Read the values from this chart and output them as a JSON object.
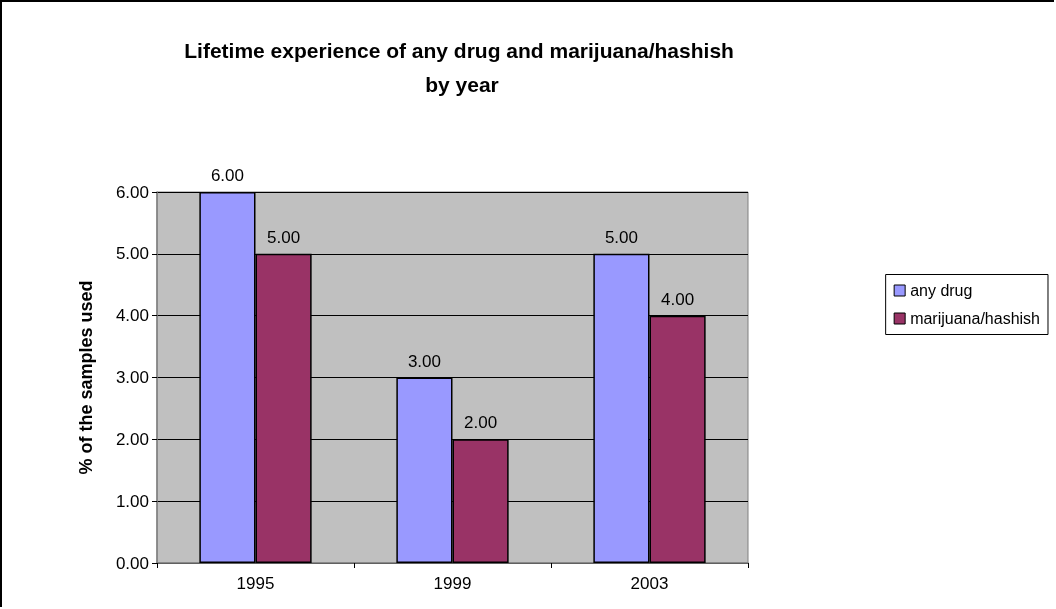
{
  "chart_data": {
    "type": "bar",
    "title": "Lifetime experience of any drug and marijuana/hashish by year",
    "ylabel": "% of the samples used",
    "categories": [
      "1995",
      "1999",
      "2003"
    ],
    "series": [
      {
        "name": "any drug",
        "color": "#9999ff",
        "values": [
          6,
          3,
          5
        ],
        "value_labels": [
          "6.00",
          "3.00",
          "5.00"
        ]
      },
      {
        "name": "marijuana/hashish",
        "color": "#993366",
        "values": [
          5,
          2,
          4
        ],
        "value_labels": [
          "5.00",
          "2.00",
          "4.00"
        ]
      }
    ],
    "ylim": [
      0,
      6
    ],
    "yticks": [
      {
        "value": 0,
        "label": "0.00"
      },
      {
        "value": 1,
        "label": "1.00"
      },
      {
        "value": 2,
        "label": "2.00"
      },
      {
        "value": 3,
        "label": "3.00"
      },
      {
        "value": 4,
        "label": "4.00"
      },
      {
        "value": 5,
        "label": "5.00"
      },
      {
        "value": 6,
        "label": "6.00"
      }
    ],
    "grid": "y",
    "legend": "right"
  }
}
